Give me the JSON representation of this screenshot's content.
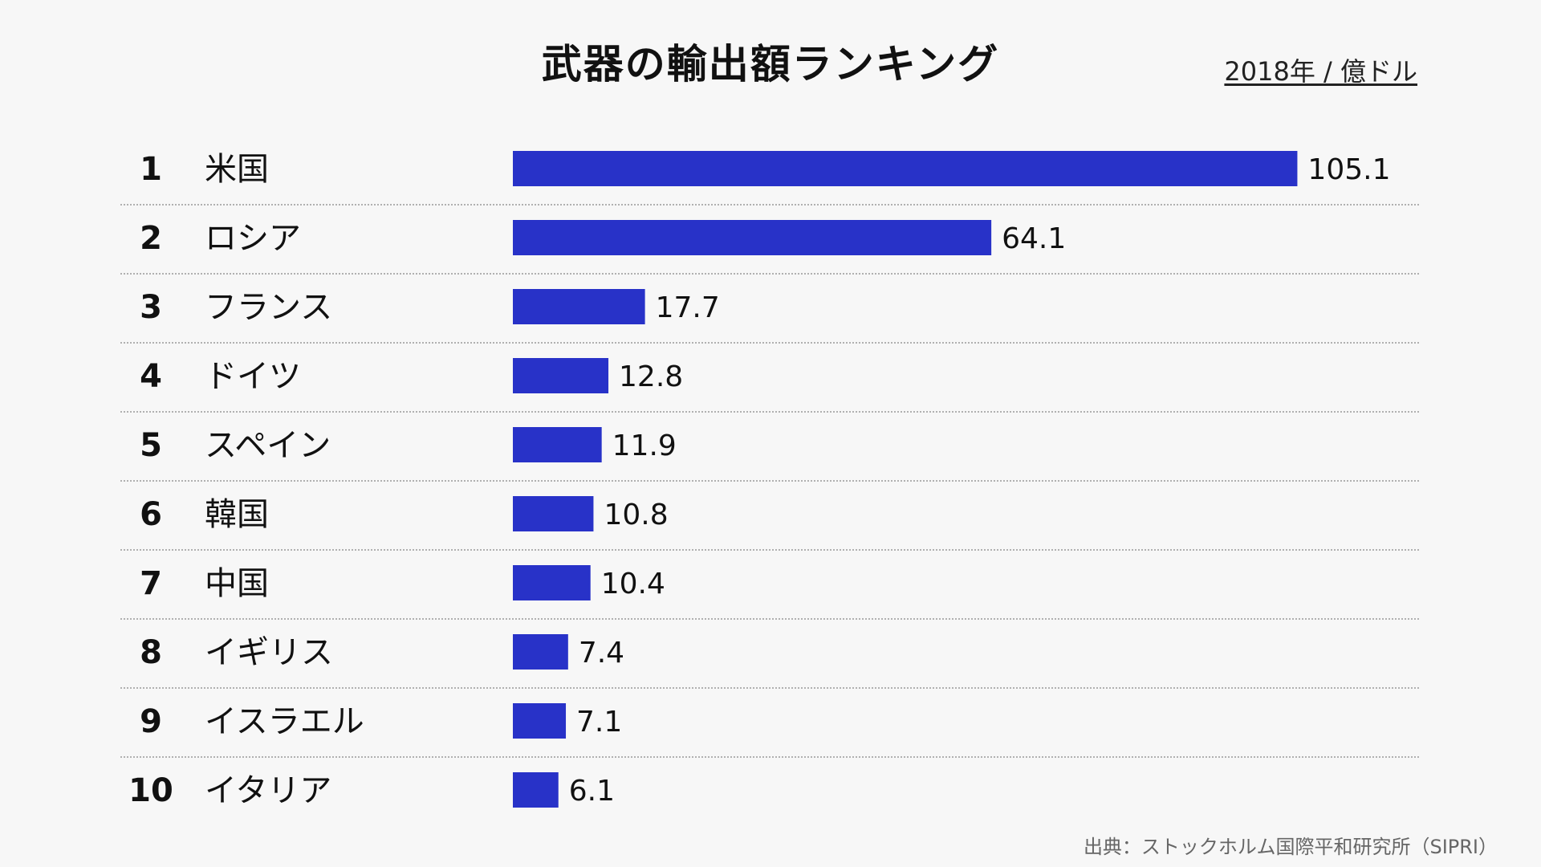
{
  "header": {
    "title": "武器の輸出額ランキング",
    "unit": "2018年 / 億ドル"
  },
  "footer": {
    "source": "出典：ストックホルム国際平和研究所（SIPRI）"
  },
  "colors": {
    "bar": "#2832c8",
    "divider": "#999999"
  },
  "chart_data": {
    "type": "bar",
    "orientation": "horizontal",
    "title": "武器の輸出額ランキング",
    "unit": "2018年 / 億ドル",
    "ranks": [
      "1",
      "2",
      "3",
      "4",
      "5",
      "6",
      "7",
      "8",
      "9",
      "10"
    ],
    "categories": [
      "米国",
      "ロシア",
      "フランス",
      "ドイツ",
      "スペイン",
      "韓国",
      "中国",
      "イギリス",
      "イスラエル",
      "イタリア"
    ],
    "values": [
      105.1,
      64.1,
      17.7,
      12.8,
      11.9,
      10.8,
      10.4,
      7.4,
      7.1,
      6.1
    ],
    "value_labels": [
      "105.1",
      "64.1",
      "17.7",
      "12.8",
      "11.9",
      "10.8",
      "10.4",
      "7.4",
      "7.1",
      "6.1"
    ],
    "grid": false,
    "legend": "none"
  }
}
